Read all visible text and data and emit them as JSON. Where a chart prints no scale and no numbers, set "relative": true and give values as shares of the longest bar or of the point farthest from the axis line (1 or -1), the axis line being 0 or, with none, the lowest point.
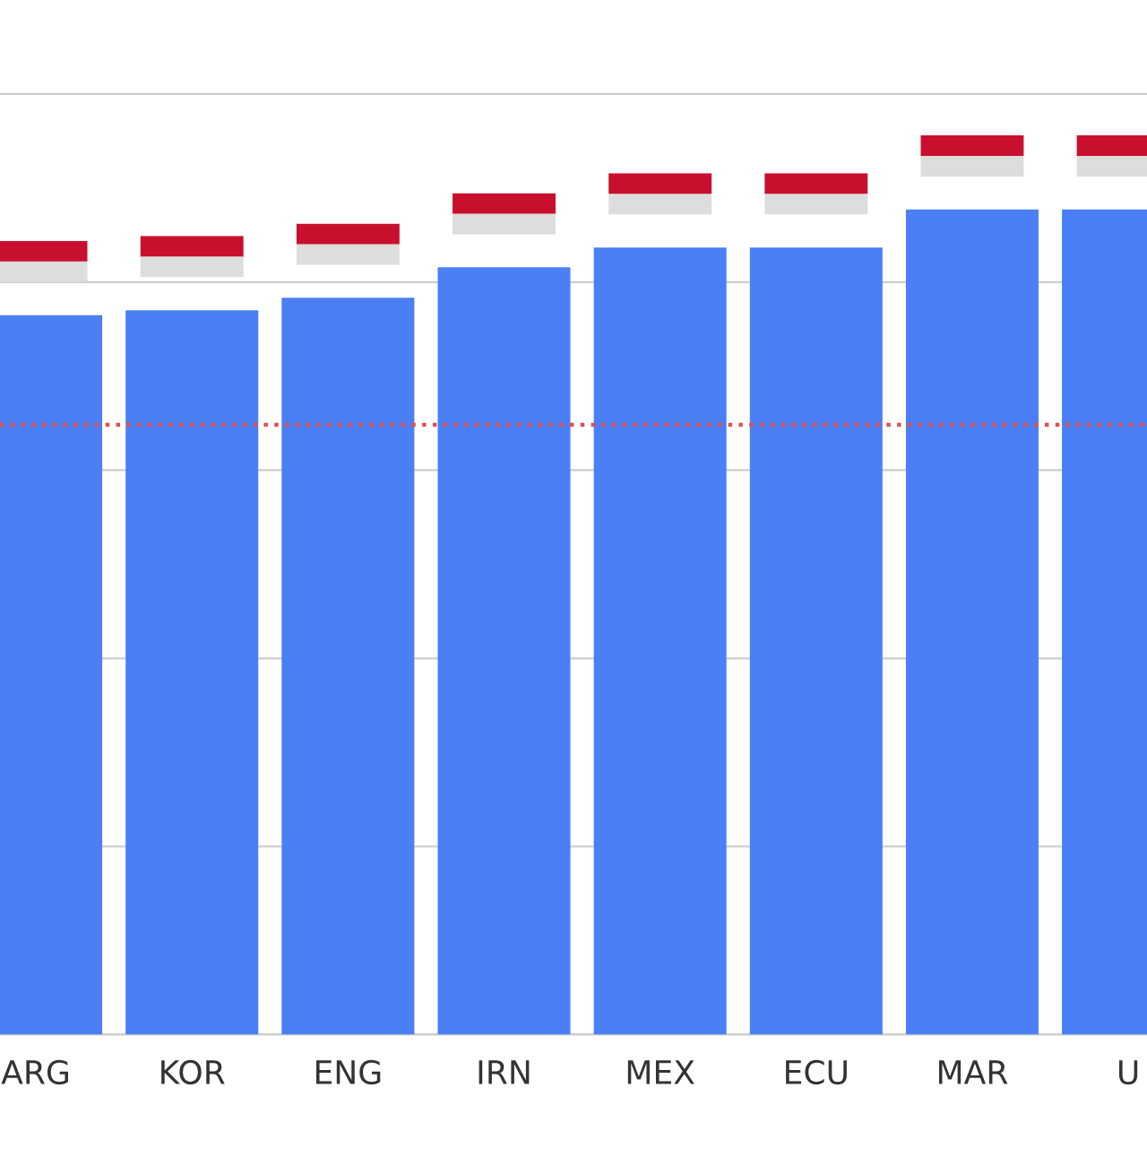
{
  "chart_data": {
    "type": "bar",
    "relative": true,
    "categories": [
      "ARG",
      "KOR",
      "ENG",
      "IRN",
      "MEX",
      "ECU",
      "MAR",
      "U"
    ],
    "values": [
      0.872,
      0.878,
      0.893,
      0.93,
      0.954,
      0.954,
      1,
      1
    ],
    "color": "#4a7ff5",
    "grid": "y",
    "ref_lines": [
      {
        "axis": "y",
        "value": 0.739,
        "color": "#e05050",
        "line_style": "dotted"
      }
    ]
  }
}
